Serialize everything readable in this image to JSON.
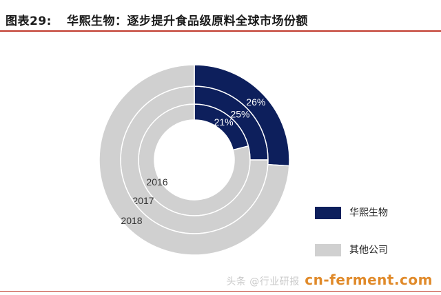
{
  "header": {
    "figure_no": "图表29:",
    "title": "华熙生物：逐步提升食品级原料全球市场份额",
    "accent_color": "#c0392b"
  },
  "chart_data": {
    "type": "nested-donut",
    "title": "华熙生物：逐步提升食品级原料全球市场份额",
    "categories": [
      "华熙生物",
      "其他公司"
    ],
    "series": [
      {
        "name": "2016",
        "values": [
          21,
          79
        ],
        "label": "21%"
      },
      {
        "name": "2017",
        "values": [
          25,
          75
        ],
        "label": "25%"
      },
      {
        "name": "2018",
        "values": [
          26,
          74
        ],
        "label": "26%"
      }
    ],
    "colors": {
      "华熙生物": "#0d1f5c",
      "其他公司": "#d0d0d0"
    },
    "legend_position": "right"
  },
  "legend": {
    "items": [
      {
        "label": "华熙生物",
        "color": "#0d1f5c"
      },
      {
        "label": "其他公司",
        "color": "#d0d0d0"
      }
    ]
  },
  "watermark": {
    "text": "cn-ferment.com",
    "sub": "头条 @行业研报"
  }
}
